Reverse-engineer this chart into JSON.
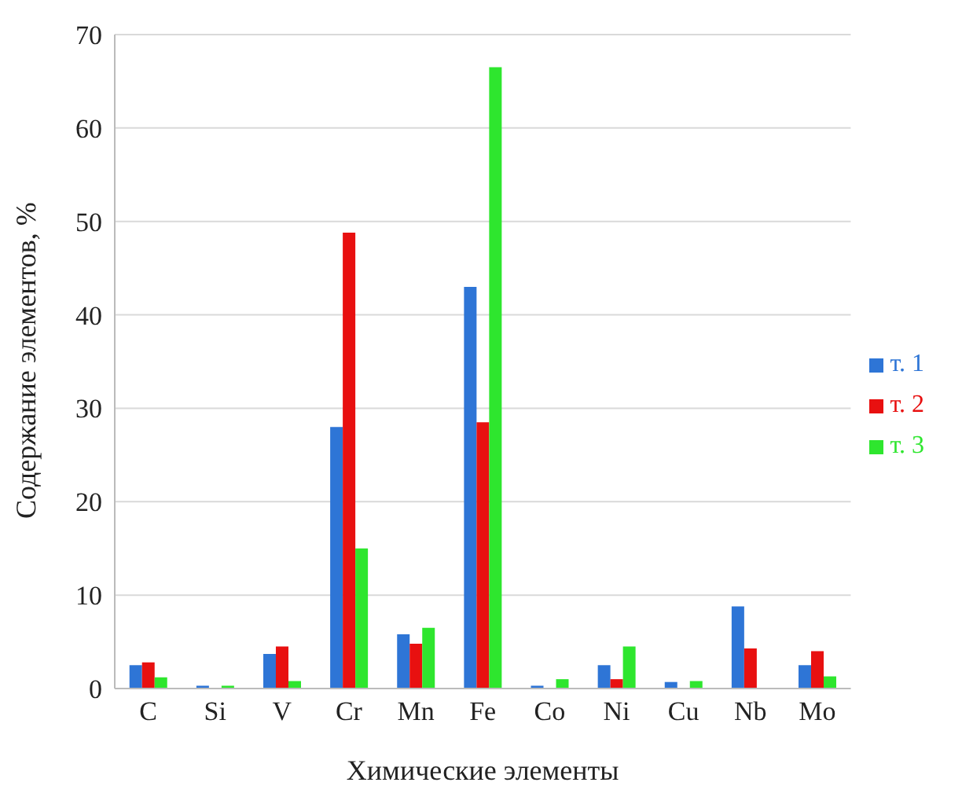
{
  "chart_data": {
    "type": "bar",
    "xlabel": "Химические элементы",
    "ylabel": "Содержание элементов, %",
    "categories": [
      "C",
      "Si",
      "V",
      "Cr",
      "Mn",
      "Fe",
      "Co",
      "Ni",
      "Cu",
      "Nb",
      "Mo"
    ],
    "series": [
      {
        "name": "т. 1",
        "color": "#2e75d6",
        "values": [
          2.5,
          0.3,
          3.7,
          28,
          5.8,
          43,
          0.3,
          2.5,
          0.7,
          8.8,
          2.5
        ]
      },
      {
        "name": "т. 2",
        "color": "#e81010",
        "values": [
          2.8,
          0,
          4.5,
          48.8,
          4.8,
          28.5,
          0,
          1.0,
          0,
          4.3,
          4.0
        ]
      },
      {
        "name": "т. 3",
        "color": "#2ee62e",
        "values": [
          1.2,
          0.3,
          0.8,
          15,
          6.5,
          66.5,
          1.0,
          4.5,
          0.8,
          0,
          1.3
        ]
      }
    ],
    "ylim": [
      0,
      70
    ],
    "yticks": [
      0,
      10,
      20,
      30,
      40,
      50,
      60,
      70
    ],
    "grid": "y",
    "legend": "right"
  }
}
